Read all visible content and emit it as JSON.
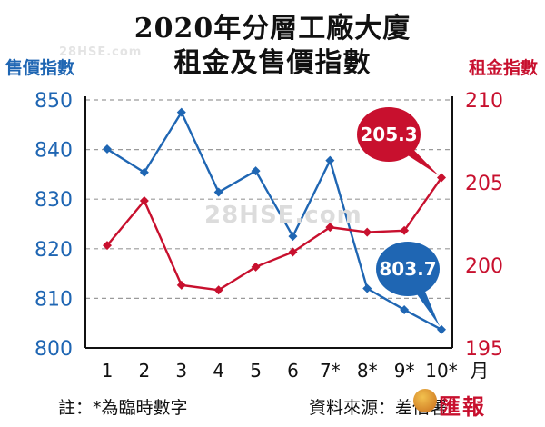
{
  "title_line1": "2020年分層工廠大廈",
  "title_line2": "租金及售價指數",
  "left_axis_title": "售價指數",
  "right_axis_title": "租金指數",
  "note": "註：*為臨時數字",
  "source": "資料來源：差估署",
  "watermark": "28HSE.com",
  "logo_text": "匯報",
  "colors": {
    "price": "#1f66b3",
    "rent": "#c8102e",
    "grid": "#9a9a9a"
  },
  "chart_data": {
    "type": "line",
    "x": [
      "1",
      "2",
      "3",
      "4",
      "5",
      "6",
      "7*",
      "8*",
      "9*",
      "10*"
    ],
    "x_unit": "月",
    "series": [
      {
        "name": "售價指數",
        "axis": "left",
        "values": [
          840.1,
          835.4,
          847.5,
          831.4,
          835.7,
          822.5,
          837.8,
          812.0,
          807.7,
          803.7
        ]
      },
      {
        "name": "租金指數",
        "axis": "right",
        "values": [
          201.2,
          203.9,
          198.8,
          198.5,
          199.9,
          200.8,
          202.3,
          202.0,
          202.1,
          205.3
        ]
      }
    ],
    "ylim_left": [
      800,
      850
    ],
    "yticks_left": [
      "800",
      "810",
      "820",
      "830",
      "840",
      "850"
    ],
    "ylim_right": [
      195,
      210
    ],
    "yticks_right": [
      "195",
      "200",
      "205",
      "210"
    ],
    "callouts": [
      {
        "label": "205.3",
        "series": 1,
        "point": 9
      },
      {
        "label": "803.7",
        "series": 0,
        "point": 9
      }
    ],
    "grid": true
  }
}
